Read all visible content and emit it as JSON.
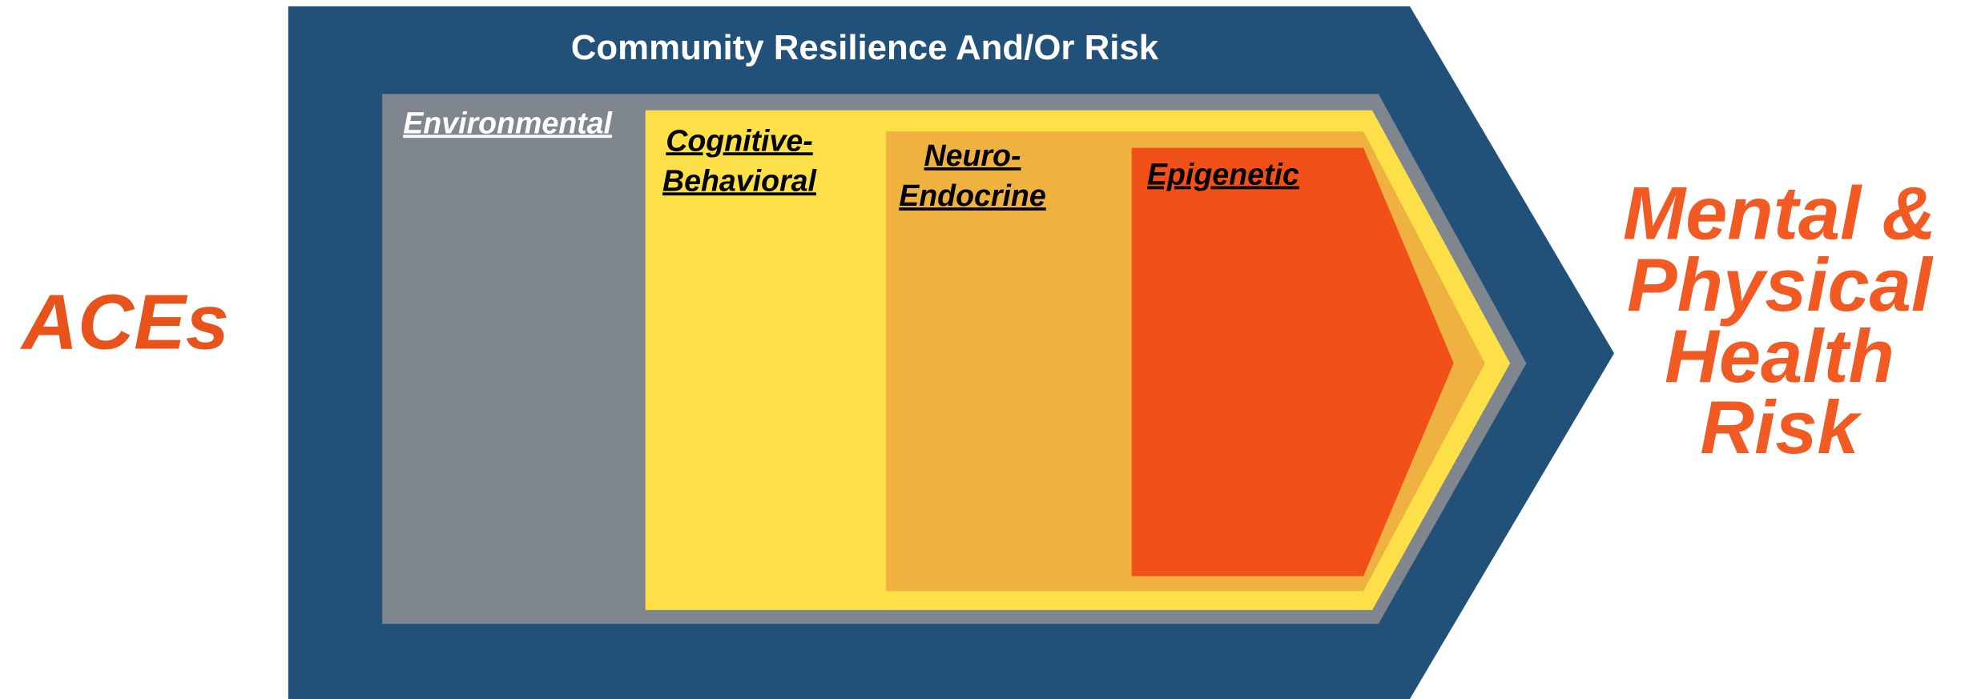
{
  "title": "Community Resilience And/Or Risk",
  "input": "ACEs",
  "output": [
    "Mental &",
    "Physical",
    "Health",
    "Risk"
  ],
  "layers": [
    {
      "label": [
        "Environmental"
      ]
    },
    {
      "label": [
        "Cognitive-",
        "Behavioral"
      ]
    },
    {
      "label": [
        "Neuro-",
        "Endocrine"
      ]
    },
    {
      "label": [
        "Epigenetic"
      ]
    }
  ]
}
